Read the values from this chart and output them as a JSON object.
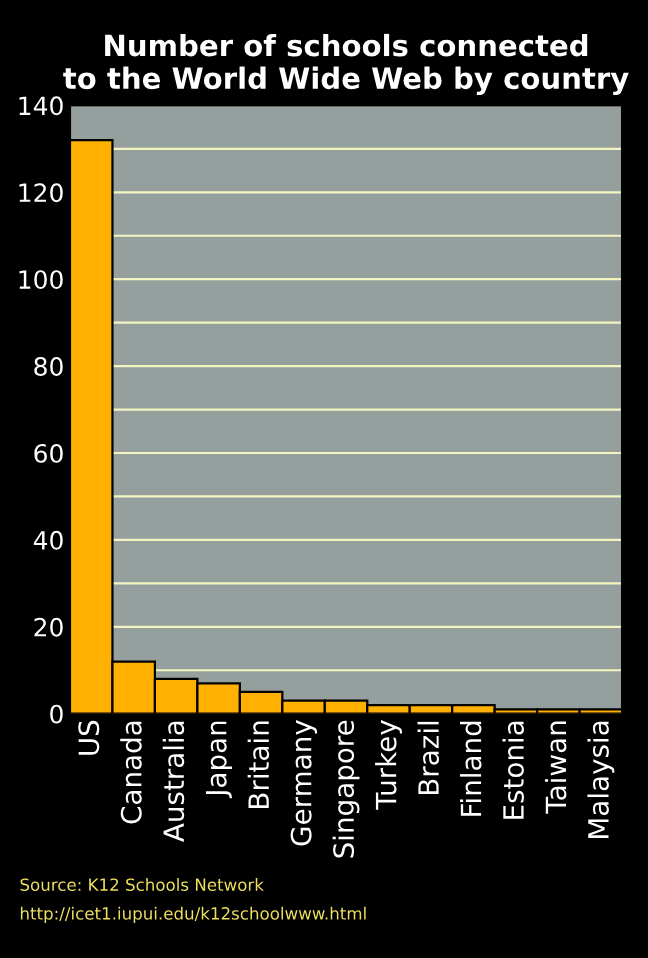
{
  "chart_data": {
    "type": "bar",
    "title": "Number of schools connected\nto the World Wide Web by country",
    "categories": [
      "US",
      "Canada",
      "Australia",
      "Japan",
      "Britain",
      "Germany",
      "Singapore",
      "Turkey",
      "Brazil",
      "Finland",
      "Estonia",
      "Taiwan",
      "Malaysia"
    ],
    "values": [
      132,
      12,
      8,
      7,
      5,
      3,
      3,
      2,
      2,
      2,
      1,
      1,
      1
    ],
    "color": "#ffb000",
    "ylim": [
      0,
      140
    ],
    "yticks": [
      0,
      {
        "value": 10,
        "label": null
      },
      20,
      {
        "value": 30,
        "label": null
      },
      40,
      {
        "value": 50,
        "label": null
      },
      60,
      {
        "value": 70,
        "label": null
      },
      80,
      {
        "value": 90,
        "label": null
      },
      100,
      {
        "value": 110,
        "label": null
      },
      120,
      {
        "value": 130,
        "label": null
      },
      140
    ],
    "grid": "y",
    "annotations": [
      "Source: K12 Schools Network",
      "http://icet1.iupui.edu/k12schoolwww.html"
    ]
  }
}
